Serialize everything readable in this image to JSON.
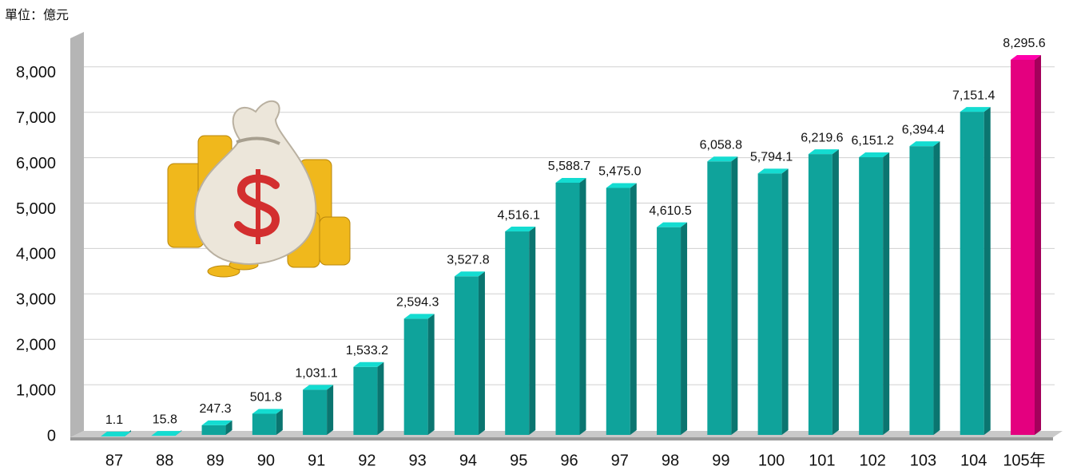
{
  "chart_data": {
    "type": "bar3d",
    "unit_label": "單位：億元",
    "categories": [
      "87",
      "88",
      "89",
      "90",
      "91",
      "92",
      "93",
      "94",
      "95",
      "96",
      "97",
      "98",
      "99",
      "100",
      "101",
      "102",
      "103",
      "104",
      "105年"
    ],
    "values": [
      1.1,
      15.8,
      247.3,
      501.8,
      1031.1,
      1533.2,
      2594.3,
      3527.8,
      4516.1,
      5588.7,
      5475.0,
      4610.5,
      6058.8,
      5794.1,
      6219.6,
      6151.2,
      6394.4,
      7151.4,
      8295.6
    ],
    "value_labels": [
      "1.1",
      "15.8",
      "247.3",
      "501.8",
      "1,031.1",
      "1,533.2",
      "2,594.3",
      "3,527.8",
      "4,516.1",
      "5,588.7",
      "5,475.0",
      "4,610.5",
      "6,058.8",
      "5,794.1",
      "6,219.6",
      "6,151.2",
      "6,394.4",
      "7,151.4",
      "8,295.6"
    ],
    "colors": [
      "#0fa39b",
      "#0fa39b",
      "#0fa39b",
      "#0fa39b",
      "#0fa39b",
      "#0fa39b",
      "#0fa39b",
      "#0fa39b",
      "#0fa39b",
      "#0fa39b",
      "#0fa39b",
      "#0fa39b",
      "#0fa39b",
      "#0fa39b",
      "#0fa39b",
      "#0fa39b",
      "#0fa39b",
      "#0fa39b",
      "#e4007f"
    ],
    "ylim": [
      0,
      9000
    ],
    "yticks": [
      0,
      {
        "value": 1000,
        "label": "1,000"
      },
      {
        "value": 2000,
        "label": "2,000"
      },
      {
        "value": 3000,
        "label": "3,000"
      },
      {
        "value": 4000,
        "label": "4,000"
      },
      {
        "value": 5000,
        "label": "5,000"
      },
      {
        "value": 6000,
        "label": "6,000"
      },
      {
        "value": 7000,
        "label": "7,000"
      },
      {
        "value": 8000,
        "label": "8,000"
      }
    ],
    "grid": true
  }
}
